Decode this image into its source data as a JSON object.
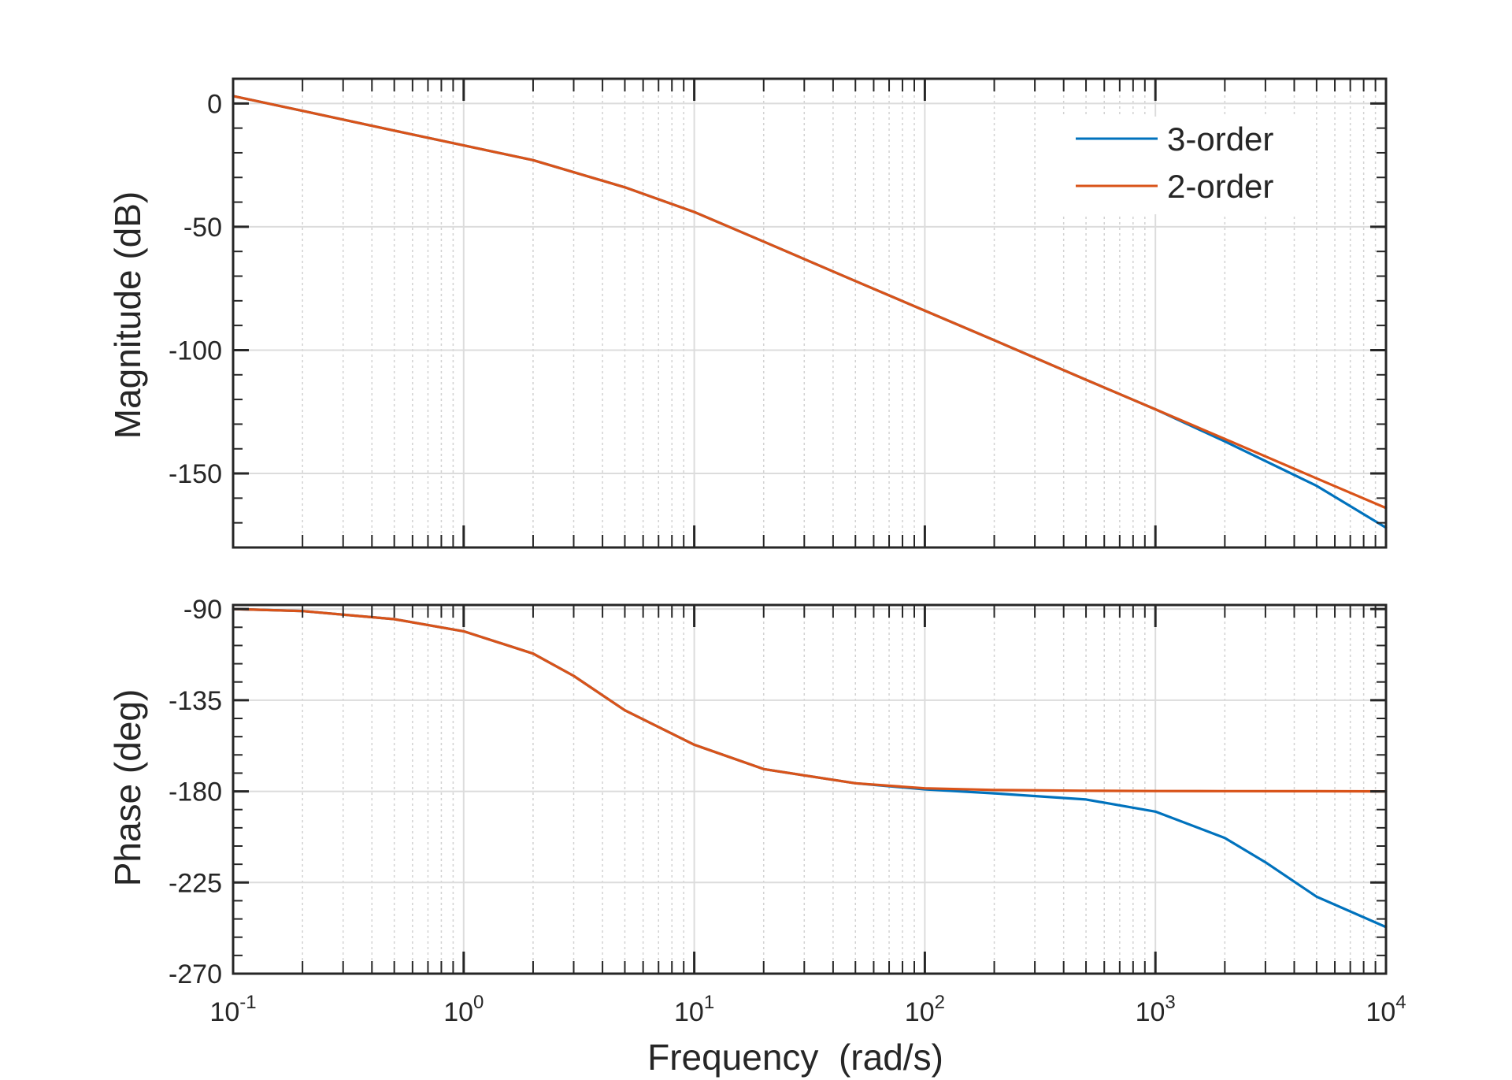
{
  "chart_data": [
    {
      "type": "line",
      "panel": "magnitude",
      "title": "",
      "xlabel": "",
      "ylabel": "Magnitude (dB)",
      "x_scale": "log",
      "xlim": [
        0.1,
        10000
      ],
      "ylim": [
        -180,
        10
      ],
      "y_ticks": [
        0,
        -50,
        -100,
        -150
      ],
      "y_tick_labels": [
        "0",
        "-50",
        "-100",
        "-150"
      ],
      "grid": true,
      "legend": {
        "placement": "top-right",
        "entries": [
          {
            "label": "3-order",
            "color": "#0072BD"
          },
          {
            "label": "2-order",
            "color": "#D95319"
          }
        ]
      },
      "series": [
        {
          "name": "3-order",
          "color": "#0072BD",
          "x": [
            0.1,
            0.2,
            0.5,
            1,
            2,
            5,
            10,
            20,
            50,
            100,
            200,
            500,
            1000,
            2000,
            5000,
            10000
          ],
          "y": [
            3,
            -3,
            -11,
            -17,
            -23,
            -34,
            -44,
            -56,
            -72,
            -84,
            -96,
            -112,
            -124,
            -137,
            -155,
            -172
          ]
        },
        {
          "name": "2-order",
          "color": "#D95319",
          "x": [
            0.1,
            0.2,
            0.5,
            1,
            2,
            5,
            10,
            20,
            50,
            100,
            200,
            500,
            1000,
            2000,
            5000,
            10000
          ],
          "y": [
            3,
            -3,
            -11,
            -17,
            -23,
            -34,
            -44,
            -56,
            -72,
            -84,
            -96,
            -112,
            -124,
            -136,
            -152,
            -164
          ]
        }
      ]
    },
    {
      "type": "line",
      "panel": "phase",
      "title": "",
      "xlabel": "Frequency  (rad/s)",
      "ylabel": "Phase (deg)",
      "x_scale": "log",
      "xlim": [
        0.1,
        10000
      ],
      "ylim": [
        -270,
        -88
      ],
      "x_ticks": [
        0.1,
        1,
        10,
        100,
        1000,
        10000
      ],
      "x_tick_labels": [
        {
          "base": "10",
          "exp": "-1"
        },
        {
          "base": "10",
          "exp": "0"
        },
        {
          "base": "10",
          "exp": "1"
        },
        {
          "base": "10",
          "exp": "2"
        },
        {
          "base": "10",
          "exp": "3"
        },
        {
          "base": "10",
          "exp": "4"
        }
      ],
      "y_ticks": [
        -90,
        -135,
        -180,
        -225,
        -270
      ],
      "y_tick_labels": [
        "-90",
        "-135",
        "-180",
        "-225",
        "-270"
      ],
      "grid": true,
      "series": [
        {
          "name": "3-order",
          "color": "#0072BD",
          "x": [
            0.1,
            0.2,
            0.5,
            1,
            2,
            3,
            5,
            10,
            20,
            50,
            100,
            200,
            500,
            1000,
            2000,
            3000,
            5000,
            10000
          ],
          "y": [
            -90,
            -91,
            -95,
            -101,
            -112,
            -123,
            -140,
            -157,
            -169,
            -176,
            -179,
            -181,
            -184,
            -190,
            -203,
            -215,
            -232,
            -247
          ]
        },
        {
          "name": "2-order",
          "color": "#D95319",
          "x": [
            0.1,
            0.2,
            0.5,
            1,
            2,
            3,
            5,
            10,
            20,
            50,
            100,
            200,
            500,
            1000,
            2000,
            5000,
            10000
          ],
          "y": [
            -90,
            -91,
            -95,
            -101,
            -112,
            -123,
            -140,
            -157,
            -169,
            -176,
            -178.5,
            -179.3,
            -179.7,
            -179.85,
            -179.9,
            -179.95,
            -180
          ]
        }
      ]
    }
  ]
}
